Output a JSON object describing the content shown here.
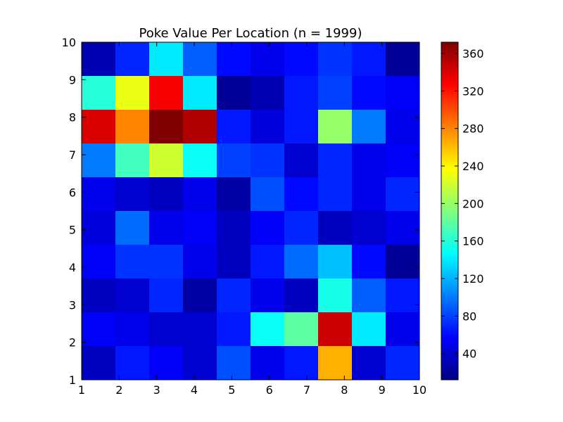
{
  "chart_data": {
    "type": "heatmap",
    "title": "Poke Value Per Location (n = 1999)",
    "xlabel": "",
    "ylabel": "",
    "x_ticks": [
      "1",
      "2",
      "3",
      "4",
      "5",
      "6",
      "7",
      "8",
      "9",
      "10"
    ],
    "y_ticks": [
      "1",
      "2",
      "3",
      "4",
      "5",
      "6",
      "7",
      "8",
      "9",
      "10"
    ],
    "xlim": [
      1,
      10
    ],
    "ylim": [
      1,
      10
    ],
    "colorbar": {
      "colormap": "jet",
      "vmin": 12,
      "vmax": 372,
      "ticks": [
        "40",
        "80",
        "120",
        "160",
        "200",
        "240",
        "280",
        "320",
        "360"
      ]
    },
    "rows_top_to_bottom": [
      [
        30,
        70,
        140,
        90,
        60,
        50,
        60,
        75,
        65,
        20
      ],
      [
        160,
        230,
        330,
        140,
        20,
        30,
        65,
        80,
        60,
        55
      ],
      [
        340,
        280,
        372,
        355,
        65,
        45,
        65,
        200,
        100,
        50
      ],
      [
        100,
        170,
        220,
        150,
        80,
        75,
        40,
        70,
        50,
        55
      ],
      [
        50,
        40,
        35,
        50,
        25,
        85,
        60,
        70,
        50,
        70
      ],
      [
        45,
        95,
        50,
        55,
        35,
        55,
        70,
        35,
        40,
        50
      ],
      [
        55,
        75,
        75,
        50,
        35,
        65,
        95,
        125,
        60,
        20
      ],
      [
        35,
        40,
        70,
        25,
        70,
        50,
        35,
        155,
        90,
        65
      ],
      [
        55,
        50,
        40,
        40,
        65,
        150,
        180,
        345,
        140,
        50
      ],
      [
        35,
        65,
        55,
        40,
        85,
        50,
        65,
        265,
        40,
        70
      ]
    ]
  }
}
